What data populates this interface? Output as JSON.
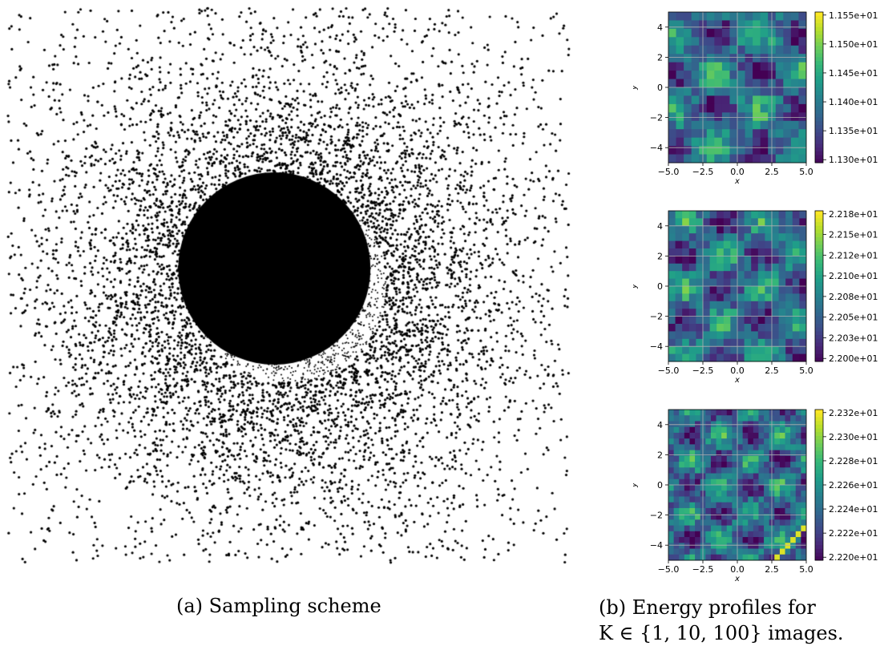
{
  "captions": {
    "a": "(a) Sampling scheme",
    "b_line1": "(b) Energy profiles for",
    "b_line2": "K ∈ {1, 10, 100} images."
  },
  "chart_data": [
    {
      "type": "scatter",
      "description_free": true,
      "title": "",
      "xlim": [
        -1,
        1
      ],
      "ylim": [
        -1,
        1
      ],
      "point_color": "#000000",
      "grid": false
    },
    {
      "type": "heatmap",
      "xlabel": "x",
      "ylabel": "y",
      "xlim": [
        -5,
        5
      ],
      "ylim": [
        -5,
        5
      ],
      "xticks": [
        "−5.0",
        "−2.5",
        "0.0",
        "2.5",
        "5.0"
      ],
      "yticks": [
        "4",
        "2",
        "0",
        "−2",
        "−4"
      ],
      "grid": true,
      "colormap": "viridis",
      "colorbar_ticks": [
        "1.155e+01",
        "1.150e+01",
        "1.145e+01",
        "1.140e+01",
        "1.135e+01",
        "1.130e+01"
      ],
      "colorbar_range": [
        11.28,
        11.56
      ]
    },
    {
      "type": "heatmap",
      "xlabel": "x",
      "ylabel": "y",
      "xlim": [
        -5,
        5
      ],
      "ylim": [
        -5,
        5
      ],
      "xticks": [
        "−5.0",
        "−2.5",
        "0.0",
        "2.5",
        "5.0"
      ],
      "yticks": [
        "4",
        "2",
        "0",
        "−2",
        "−4"
      ],
      "grid": true,
      "colormap": "viridis",
      "colorbar_ticks": [
        "2.218e+01",
        "2.215e+01",
        "2.212e+01",
        "2.210e+01",
        "2.208e+01",
        "2.205e+01",
        "2.203e+01",
        "2.200e+01"
      ],
      "colorbar_range": [
        22.198,
        22.219
      ]
    },
    {
      "type": "heatmap",
      "xlabel": "x",
      "ylabel": "y",
      "xlim": [
        -5,
        5
      ],
      "ylim": [
        -5,
        5
      ],
      "xticks": [
        "−5.0",
        "−2.5",
        "0.0",
        "2.5",
        "5.0"
      ],
      "yticks": [
        "4",
        "2",
        "0",
        "−2",
        "−4"
      ],
      "grid": true,
      "colormap": "viridis",
      "colorbar_ticks": [
        "2.232e+01",
        "2.230e+01",
        "2.228e+01",
        "2.226e+01",
        "2.224e+01",
        "2.222e+01",
        "2.220e+01"
      ],
      "colorbar_range": [
        22.219,
        22.233
      ]
    }
  ]
}
